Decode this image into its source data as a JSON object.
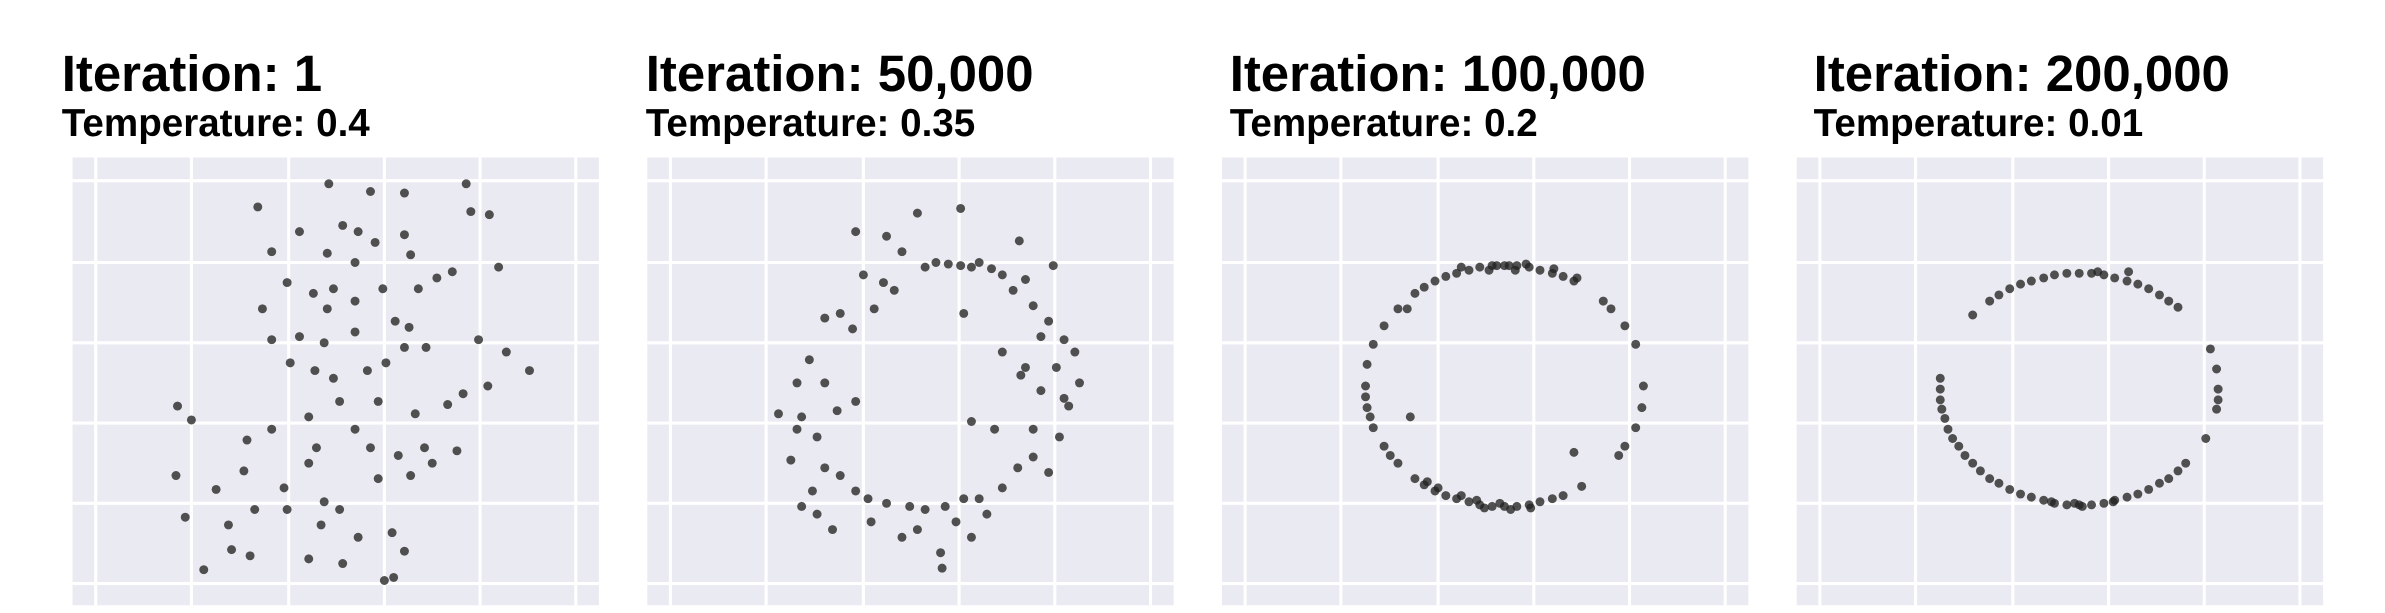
{
  "chart_data": [
    {
      "type": "scatter",
      "title": "Iteration: 1",
      "subtitle": "Temperature: 0.4",
      "color": "#222222",
      "grid": true,
      "xlim": [
        -15,
        326
      ],
      "ylim": [
        -14,
        276
      ],
      "xticks": [
        0,
        62,
        125,
        187,
        249,
        311
      ],
      "yticks": [
        0,
        52,
        104,
        156,
        208,
        261
      ],
      "x": [
        105,
        151,
        178,
        200,
        240,
        243,
        255,
        132,
        160,
        170,
        181,
        200,
        114,
        150,
        168,
        204,
        221,
        209,
        231,
        261,
        124,
        141,
        154,
        150,
        168,
        186,
        194,
        203,
        108,
        114,
        132,
        148,
        168,
        176,
        188,
        200,
        214,
        248,
        266,
        281,
        254,
        126,
        142,
        154,
        158,
        183,
        207,
        228,
        238,
        53,
        62,
        98,
        114,
        138,
        143,
        168,
        178,
        196,
        213,
        234,
        52,
        78,
        96,
        122,
        138,
        148,
        158,
        183,
        204,
        218,
        58,
        86,
        103,
        124,
        146,
        170,
        192,
        200,
        88,
        100,
        70,
        138,
        160,
        187,
        193
      ],
      "y": [
        244,
        259,
        254,
        253,
        259,
        241,
        239,
        228,
        232,
        228,
        221,
        226,
        215,
        214,
        208,
        213,
        198,
        191,
        202,
        205,
        195,
        188,
        191,
        178,
        183,
        191,
        170,
        166,
        178,
        158,
        160,
        156,
        163,
        138,
        143,
        153,
        153,
        158,
        150,
        138,
        128,
        143,
        138,
        133,
        118,
        118,
        110,
        116,
        123,
        115,
        106,
        93,
        100,
        108,
        88,
        100,
        88,
        83,
        88,
        86,
        70,
        61,
        73,
        62,
        78,
        53,
        48,
        68,
        70,
        78,
        43,
        38,
        48,
        48,
        38,
        30,
        33,
        21,
        22,
        18,
        9,
        16,
        13,
        2,
        4
      ]
    },
    {
      "type": "scatter",
      "title": "Iteration: 50,000",
      "subtitle": "Temperature: 0.35",
      "color": "#222222",
      "grid": true,
      "xlim": [
        -15,
        326
      ],
      "ylim": [
        -14,
        276
      ],
      "xticks": [
        0,
        62,
        125,
        187,
        249,
        311
      ],
      "yticks": [
        0,
        52,
        104,
        156,
        208,
        261
      ],
      "x": [
        165,
        172,
        180,
        188,
        195,
        200,
        208,
        215,
        120,
        140,
        160,
        188,
        226,
        248,
        230,
        150,
        138,
        125,
        110,
        100,
        118,
        132,
        145,
        222,
        235,
        245,
        255,
        262,
        240,
        250,
        265,
        255,
        240,
        227,
        90,
        100,
        85,
        82,
        95,
        108,
        120,
        195,
        210,
        235,
        252,
        258,
        100,
        110,
        92,
        120,
        128,
        140,
        155,
        165,
        178,
        190,
        200,
        215,
        225,
        235,
        245,
        130,
        150,
        175,
        195,
        105,
        95,
        85,
        176,
        160,
        185,
        205,
        70,
        78,
        82,
        230,
        215,
        190
      ],
      "y": [
        205,
        208,
        207,
        206,
        205,
        208,
        204,
        200,
        228,
        225,
        240,
        243,
        222,
        206,
        197,
        215,
        195,
        200,
        175,
        172,
        165,
        178,
        190,
        190,
        180,
        170,
        158,
        150,
        160,
        140,
        130,
        120,
        125,
        135,
        145,
        130,
        108,
        100,
        95,
        112,
        118,
        105,
        100,
        100,
        95,
        115,
        75,
        70,
        60,
        60,
        55,
        52,
        50,
        48,
        50,
        55,
        55,
        62,
        75,
        82,
        72,
        40,
        30,
        20,
        30,
        35,
        45,
        50,
        10,
        35,
        40,
        45,
        110,
        80,
        130,
        140,
        150,
        175
      ]
    },
    {
      "type": "scatter",
      "title": "Iteration: 100,000",
      "subtitle": "Temperature: 0.2",
      "color": "#222222",
      "grid": true,
      "xlim": [
        -15,
        326
      ],
      "ylim": [
        -14,
        276
      ],
      "xticks": [
        0,
        62,
        125,
        187,
        249,
        311
      ],
      "yticks": [
        0,
        52,
        104,
        156,
        208,
        261
      ],
      "x": [
        213,
        206,
        199,
        191,
        184,
        176,
        171,
        168,
        163,
        160,
        152,
        145,
        137,
        130,
        123,
        116,
        110,
        99,
        215,
        200,
        182,
        175,
        158,
        140,
        232,
        237,
        246,
        253,
        258,
        257,
        253,
        246,
        242,
        90,
        83,
        79,
        78,
        78,
        79,
        81,
        83,
        90,
        94,
        99,
        110,
        116,
        123,
        130,
        137,
        145,
        152,
        160,
        168,
        176,
        184,
        191,
        199,
        206,
        140,
        150,
        165,
        172,
        185,
        155,
        125,
        118,
        213,
        218,
        107,
        105
      ],
      "y": [
        196,
        199,
        201,
        203,
        205,
        206,
        206,
        206,
        206,
        206,
        205,
        203,
        201,
        199,
        196,
        192,
        188,
        178,
        198,
        204,
        207,
        203,
        203,
        205,
        183,
        178,
        167,
        155,
        128,
        114,
        101,
        89,
        83,
        167,
        155,
        142,
        128,
        121,
        114,
        108,
        101,
        89,
        83,
        78,
        68,
        64,
        60,
        57,
        55,
        53,
        51,
        50,
        50,
        50,
        51,
        53,
        55,
        57,
        57,
        54,
        52,
        48,
        49,
        49,
        62,
        66,
        85,
        63,
        108,
        178
      ]
    },
    {
      "type": "scatter",
      "title": "Iteration: 200,000",
      "subtitle": "Temperature: 0.01",
      "color": "#222222",
      "grid": true,
      "xlim": [
        -15,
        326
      ],
      "ylim": [
        -14,
        276
      ],
      "xticks": [
        0,
        62,
        125,
        187,
        249,
        311
      ],
      "yticks": [
        0,
        52,
        104,
        156,
        208,
        261
      ],
      "x": [
        232,
        226,
        220,
        213,
        206,
        199,
        191,
        184,
        176,
        168,
        160,
        152,
        145,
        137,
        130,
        123,
        116,
        110,
        99,
        253,
        258,
        258,
        257,
        257,
        250,
        78,
        78,
        78,
        79,
        81,
        83,
        86,
        90,
        94,
        99,
        104,
        110,
        116,
        123,
        130,
        137,
        145,
        152,
        160,
        168,
        176,
        184,
        191,
        199,
        206,
        213,
        220,
        226,
        232,
        237,
        170,
        165,
        150,
        190,
        200,
        180
      ],
      "y": [
        179,
        183,
        187,
        191,
        194,
        196,
        198,
        200,
        201,
        201,
        201,
        200,
        198,
        196,
        194,
        191,
        187,
        183,
        174,
        152,
        126,
        119,
        113,
        139,
        94,
        133,
        126,
        119,
        113,
        107,
        100,
        94,
        89,
        83,
        78,
        73,
        68,
        65,
        61,
        58,
        56,
        54,
        52,
        51,
        51,
        51,
        52,
        54,
        56,
        58,
        61,
        65,
        68,
        73,
        78,
        50,
        52,
        53,
        53,
        202,
        202
      ]
    }
  ]
}
